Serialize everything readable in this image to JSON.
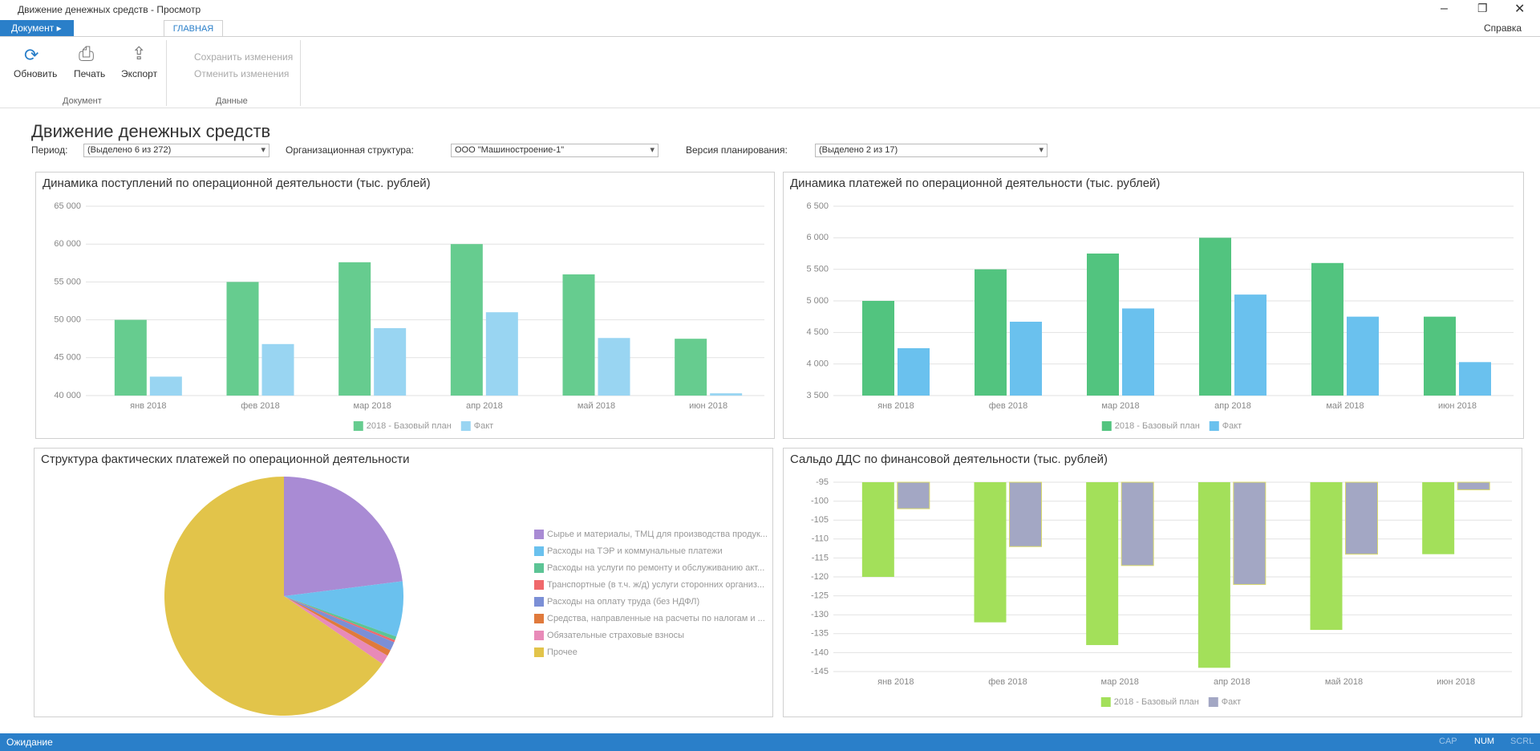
{
  "window": {
    "title": "Движение денежных средств - Просмотр"
  },
  "ribbon": {
    "document_menu": "Документ",
    "tab": "ГЛАВНАЯ",
    "help": "Справка",
    "buttons": [
      "Обновить",
      "Печать",
      "Экспорт"
    ],
    "actions": [
      "Сохранить изменения",
      "Отменить изменения"
    ],
    "groups": [
      "Документ",
      "Данные"
    ]
  },
  "report": {
    "title": "Движение денежных средств",
    "filters": [
      {
        "label": "Период:",
        "value": "(Выделено 6 из 272)"
      },
      {
        "label": "Организационная структура:",
        "value": "ООО \"Машиностроение-1\""
      },
      {
        "label": "Версия планирования:",
        "value": "(Выделено 2 из 17)"
      }
    ]
  },
  "chart_data": [
    {
      "type": "bar",
      "title": "Динамика поступлений по операционной деятельности (тыс. рублей)",
      "categories": [
        "янв 2018",
        "фев 2018",
        "мар 2018",
        "апр 2018",
        "май 2018",
        "июн 2018"
      ],
      "series": [
        {
          "name": "2018 - Базовый план",
          "color": "#66cc8f",
          "values": [
            50000,
            55000,
            57600,
            60000,
            56000,
            47500
          ]
        },
        {
          "name": "Факт",
          "color": "#99d5f2",
          "values": [
            42500,
            46800,
            48900,
            51000,
            47600,
            40300
          ]
        }
      ],
      "ylim": [
        40000,
        65000
      ],
      "yticks": [
        {
          "value": 40000,
          "label": "40 000"
        },
        {
          "value": 45000,
          "label": "45 000"
        },
        {
          "value": 50000,
          "label": "50 000"
        },
        {
          "value": 55000,
          "label": "55 000"
        },
        {
          "value": 60000,
          "label": "60 000"
        },
        {
          "value": 65000,
          "label": "65 000"
        }
      ],
      "grid": true
    },
    {
      "type": "bar",
      "title": "Динамика платежей по операционной деятельности (тыс. рублей)",
      "categories": [
        "янв 2018",
        "фев 2018",
        "мар 2018",
        "апр 2018",
        "май 2018",
        "июн 2018"
      ],
      "series": [
        {
          "name": "2018 - Базовый план",
          "color": "#52c47f",
          "values": [
            5000,
            5500,
            5750,
            6000,
            5600,
            4750
          ]
        },
        {
          "name": "Факт",
          "color": "#6ac1ee",
          "values": [
            4250,
            4670,
            4880,
            5100,
            4750,
            4030
          ]
        }
      ],
      "ylim": [
        3500,
        6500
      ],
      "yticks": [
        {
          "value": 3500,
          "label": "3 500"
        },
        {
          "value": 4000,
          "label": "4 000"
        },
        {
          "value": 4500,
          "label": "4 500"
        },
        {
          "value": 5000,
          "label": "5 000"
        },
        {
          "value": 5500,
          "label": "5 500"
        },
        {
          "value": 6000,
          "label": "6 000"
        },
        {
          "value": 6500,
          "label": "6 500"
        }
      ],
      "grid": true
    },
    {
      "type": "pie",
      "title": "Структура фактических платежей по операционной деятельности",
      "categories": [
        "Сырье и материалы, ТМЦ для производства продук...",
        "Расходы на ТЭР и коммунальные платежи",
        "Расходы на услуги по ремонту и обслуживанию акт...",
        "Транспортные (в т.ч. ж/д) услуги сторонних организ...",
        "Расходы на оплату труда (без НДФЛ)",
        "Средства, направленные на расчеты по налогам и ...",
        "Обязательные страховые взносы",
        "Прочее"
      ],
      "values": [
        23,
        7.5,
        0.5,
        0.3,
        1.2,
        0.8,
        1.3,
        65.4
      ],
      "colors": [
        "#a98bd4",
        "#6ac1ee",
        "#5cc495",
        "#f0686b",
        "#7b8fd6",
        "#e07a3c",
        "#e88ab8",
        "#e2c44a"
      ]
    },
    {
      "type": "bar",
      "title": "Сальдо ДДС по финансовой деятельности (тыс. рублей)",
      "categories": [
        "янв 2018",
        "фев 2018",
        "мар 2018",
        "апр 2018",
        "май 2018",
        "июн 2018"
      ],
      "series": [
        {
          "name": "2018 - Базовый план",
          "color": "#a3e05a",
          "values": [
            -120,
            -132,
            -138,
            -144,
            -134,
            -114
          ]
        },
        {
          "name": "Факт",
          "color": "#a3a7c4",
          "values": [
            -102,
            -112,
            -117,
            -122,
            -114,
            -97
          ]
        }
      ],
      "ylim": [
        -145,
        -95
      ],
      "yticks": [
        -145,
        -140,
        -135,
        -130,
        -125,
        -120,
        -115,
        -110,
        -105,
        -100,
        -95
      ],
      "grid": true
    }
  ],
  "status": {
    "text": "Ожидание",
    "indicators": [
      "CAP",
      "NUM",
      "SCRL"
    ]
  }
}
